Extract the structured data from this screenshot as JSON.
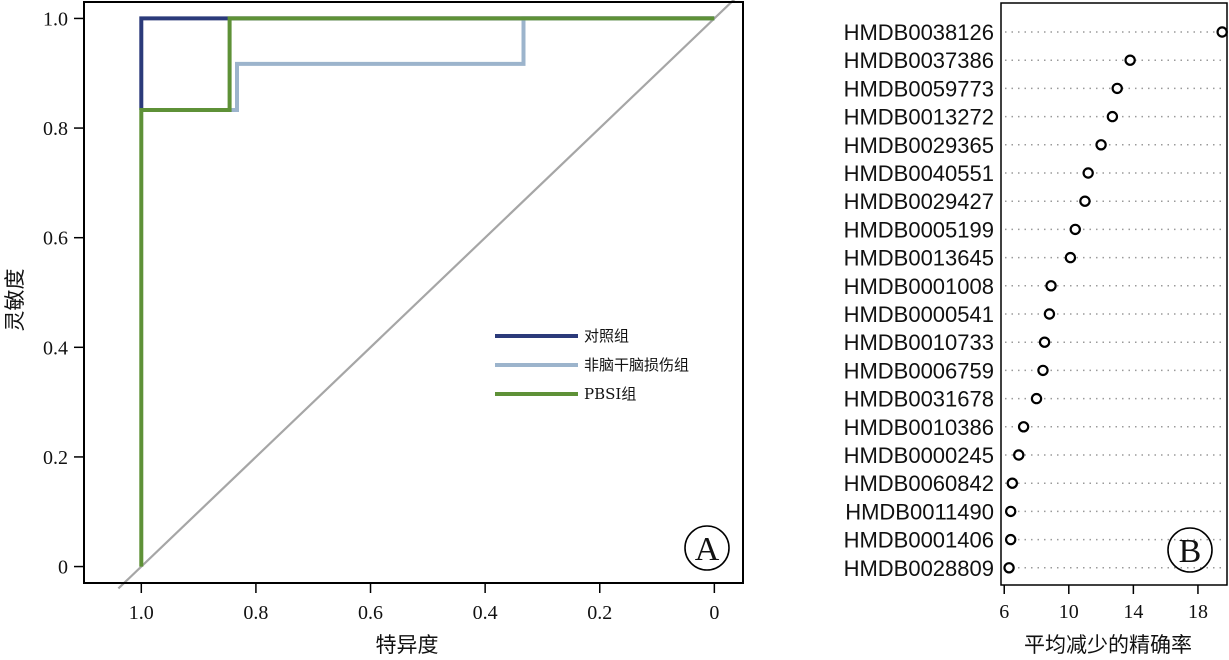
{
  "chart_data": [
    {
      "type": "line",
      "panel_label": "A",
      "xlabel": "特异度",
      "ylabel": "灵敏度",
      "x_reversed": true,
      "xlim": [
        1.1,
        -0.05
      ],
      "ylim": [
        -0.03,
        1.03
      ],
      "x_ticks": [
        1.0,
        0.8,
        0.6,
        0.4,
        0.2,
        0
      ],
      "x_tick_labels": [
        "1.0",
        "0.8",
        "0.6",
        "0.4",
        "0.2",
        "0"
      ],
      "y_ticks": [
        0,
        0.2,
        0.4,
        0.6,
        0.8,
        1.0
      ],
      "y_tick_labels": [
        "0",
        "0.2",
        "0.4",
        "0.6",
        "0.8",
        "1.0"
      ],
      "legend_position": "right",
      "series": [
        {
          "name": "对照组",
          "color": "#2b3a7a",
          "points": [
            [
              1.0,
              0.833
            ],
            [
              1.0,
              1.0
            ],
            [
              0,
              1.0
            ]
          ]
        },
        {
          "name": "非脑干脑损伤组",
          "color": "#9cb4cc",
          "points": [
            [
              1.0,
              0.833
            ],
            [
              0.833,
              0.833
            ],
            [
              0.833,
              0.917
            ],
            [
              0.333,
              0.917
            ],
            [
              0.333,
              1.0
            ],
            [
              0,
              1.0
            ]
          ]
        },
        {
          "name": "PBSI组",
          "color": "#5e9137",
          "points": [
            [
              1.0,
              0.0
            ],
            [
              1.0,
              0.833
            ],
            [
              0.846,
              0.833
            ],
            [
              0.846,
              1.0
            ],
            [
              0,
              1.0
            ]
          ]
        }
      ],
      "reference_line": {
        "color": "#a6a6a6",
        "points": [
          [
            1.04,
            -0.04
          ],
          [
            -0.04,
            1.04
          ]
        ]
      }
    },
    {
      "type": "scatter",
      "panel_label": "B",
      "xlabel": "平均减少的精确率",
      "xlim": [
        5.8,
        19.8
      ],
      "x_ticks": [
        6,
        10,
        14,
        18
      ],
      "x_tick_labels": [
        "6",
        "10",
        "14",
        "18"
      ],
      "grid": "dotted-horizontal",
      "categories": [
        "HMDB0038126",
        "HMDB0037386",
        "HMDB0059773",
        "HMDB0013272",
        "HMDB0029365",
        "HMDB0040551",
        "HMDB0029427",
        "HMDB0005199",
        "HMDB0013645",
        "HMDB0001008",
        "HMDB0000541",
        "HMDB0010733",
        "HMDB0006759",
        "HMDB0031678",
        "HMDB0010386",
        "HMDB0000245",
        "HMDB0060842",
        "HMDB0011490",
        "HMDB0001406",
        "HMDB0028809"
      ],
      "values": [
        19.5,
        13.8,
        13.0,
        12.7,
        12.0,
        11.2,
        11.0,
        10.4,
        10.1,
        8.9,
        8.8,
        8.5,
        8.4,
        8.0,
        7.2,
        6.9,
        6.5,
        6.4,
        6.4,
        6.3
      ]
    }
  ]
}
